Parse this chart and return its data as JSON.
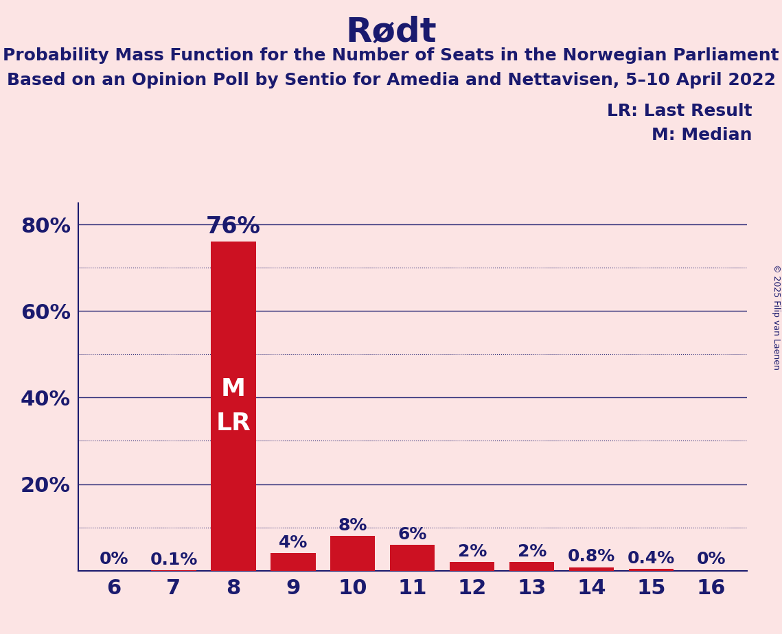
{
  "title": "Rødt",
  "subtitle_line1": "Probability Mass Function for the Number of Seats in the Norwegian Parliament",
  "subtitle_line2": "Based on an Opinion Poll by Sentio for Amedia and Nettavisen, 5–10 April 2022",
  "copyright": "© 2025 Filip van Laenen",
  "legend_lr": "LR: Last Result",
  "legend_m": "M: Median",
  "categories": [
    6,
    7,
    8,
    9,
    10,
    11,
    12,
    13,
    14,
    15,
    16
  ],
  "values": [
    0.0,
    0.1,
    76.0,
    4.0,
    8.0,
    6.0,
    2.0,
    2.0,
    0.8,
    0.4,
    0.0
  ],
  "bar_labels": [
    "0%",
    "0.1%",
    "76%",
    "4%",
    "8%",
    "6%",
    "2%",
    "2%",
    "0.8%",
    "0.4%",
    "0%"
  ],
  "bar_color": "#cc1122",
  "median_bar": 8,
  "lr_bar": 8,
  "background_color": "#fce4e4",
  "text_color": "#1a1a6e",
  "ylim": [
    0,
    85
  ],
  "grid_major_color": "#1a1a6e",
  "grid_minor_color": "#1a1a6e",
  "title_fontsize": 36,
  "subtitle_fontsize": 18,
  "axis_label_fontsize": 22,
  "bar_label_fontsize": 18,
  "legend_fontsize": 18,
  "inside_label_fontsize": 26
}
